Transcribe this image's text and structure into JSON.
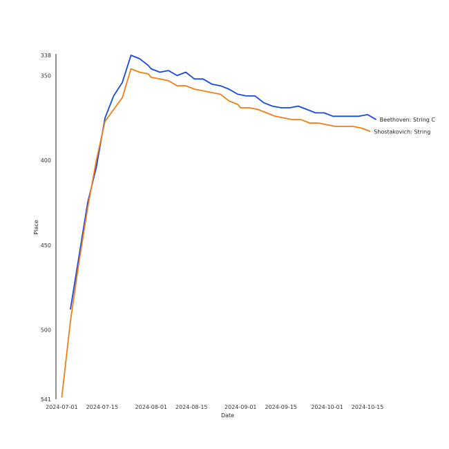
{
  "chart_data": {
    "type": "line",
    "title": "",
    "xlabel": "Date",
    "ylabel": "Place",
    "y_inverted": true,
    "ylim": [
      338,
      541
    ],
    "xlim": [
      "2024-06-29",
      "2024-10-26"
    ],
    "x_ticks": [
      "2024-07-01",
      "2024-07-15",
      "2024-08-01",
      "2024-08-15",
      "2024-09-01",
      "2024-09-15",
      "2024-10-01",
      "2024-10-15"
    ],
    "y_ticks": [
      338,
      350,
      400,
      450,
      500,
      541
    ],
    "grid": false,
    "legend": "none; series labelled at line ends",
    "colors": {
      "series_1": "#1447e6",
      "series_2": "#f47d12"
    },
    "series": [
      {
        "name": "Beethoven: String C",
        "color": "#1447e6",
        "points": [
          [
            "2024-07-04",
            488
          ],
          [
            "2024-07-10",
            425
          ],
          [
            "2024-07-13",
            404
          ],
          [
            "2024-07-16",
            375
          ],
          [
            "2024-07-19",
            362
          ],
          [
            "2024-07-22",
            354
          ],
          [
            "2024-07-25",
            338
          ],
          [
            "2024-07-28",
            340
          ],
          [
            "2024-07-31",
            344
          ],
          [
            "2024-08-01",
            346
          ],
          [
            "2024-08-04",
            348
          ],
          [
            "2024-08-07",
            347
          ],
          [
            "2024-08-10",
            350
          ],
          [
            "2024-08-13",
            348
          ],
          [
            "2024-08-16",
            352
          ],
          [
            "2024-08-19",
            352
          ],
          [
            "2024-08-22",
            355
          ],
          [
            "2024-08-25",
            356
          ],
          [
            "2024-08-28",
            358
          ],
          [
            "2024-08-31",
            361
          ],
          [
            "2024-09-03",
            362
          ],
          [
            "2024-09-06",
            362
          ],
          [
            "2024-09-09",
            366
          ],
          [
            "2024-09-12",
            368
          ],
          [
            "2024-09-15",
            369
          ],
          [
            "2024-09-18",
            369
          ],
          [
            "2024-09-21",
            368
          ],
          [
            "2024-09-24",
            370
          ],
          [
            "2024-09-27",
            372
          ],
          [
            "2024-09-30",
            372
          ],
          [
            "2024-10-03",
            374
          ],
          [
            "2024-10-06",
            374
          ],
          [
            "2024-10-09",
            374
          ],
          [
            "2024-10-12",
            374
          ],
          [
            "2024-10-15",
            373
          ],
          [
            "2024-10-18",
            376
          ]
        ]
      },
      {
        "name": "Shostakovich: String",
        "color": "#f47d12",
        "points": [
          [
            "2024-07-01",
            540
          ],
          [
            "2024-07-04",
            495
          ],
          [
            "2024-07-07",
            460
          ],
          [
            "2024-07-10",
            428
          ],
          [
            "2024-07-13",
            400
          ],
          [
            "2024-07-16",
            377
          ],
          [
            "2024-07-19",
            370
          ],
          [
            "2024-07-22",
            363
          ],
          [
            "2024-07-25",
            346
          ],
          [
            "2024-07-28",
            348
          ],
          [
            "2024-07-31",
            349
          ],
          [
            "2024-08-01",
            351
          ],
          [
            "2024-08-04",
            352
          ],
          [
            "2024-08-07",
            353
          ],
          [
            "2024-08-10",
            356
          ],
          [
            "2024-08-13",
            356
          ],
          [
            "2024-08-16",
            358
          ],
          [
            "2024-08-19",
            359
          ],
          [
            "2024-08-22",
            360
          ],
          [
            "2024-08-25",
            361
          ],
          [
            "2024-08-28",
            365
          ],
          [
            "2024-08-31",
            367
          ],
          [
            "2024-09-01",
            369
          ],
          [
            "2024-09-04",
            369
          ],
          [
            "2024-09-07",
            370
          ],
          [
            "2024-09-10",
            372
          ],
          [
            "2024-09-13",
            374
          ],
          [
            "2024-09-16",
            375
          ],
          [
            "2024-09-19",
            376
          ],
          [
            "2024-09-22",
            376
          ],
          [
            "2024-09-25",
            378
          ],
          [
            "2024-09-28",
            378
          ],
          [
            "2024-10-01",
            379
          ],
          [
            "2024-10-04",
            380
          ],
          [
            "2024-10-07",
            380
          ],
          [
            "2024-10-10",
            380
          ],
          [
            "2024-10-13",
            381
          ],
          [
            "2024-10-16",
            383
          ]
        ]
      }
    ]
  }
}
